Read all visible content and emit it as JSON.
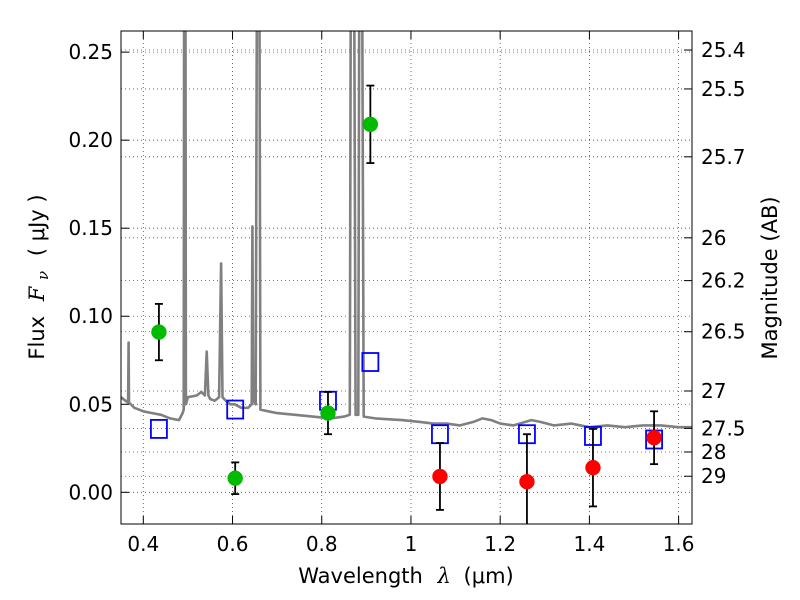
{
  "chart_data": {
    "type": "scatter",
    "xlabel_main": "Wavelength",
    "xlabel_symbol": "λ",
    "xlabel_unit": "(μm)",
    "ylabel_main": "Flux",
    "ylabel_symbol": "F",
    "ylabel_subscript": "ν",
    "ylabel_unit": "( μJy )",
    "y2label": "Magnitude (AB)",
    "xlim": [
      0.35,
      1.63
    ],
    "ylim": [
      -0.018,
      0.262
    ],
    "grid": true,
    "x_ticks": [
      {
        "value": 0.4,
        "label": "0.4"
      },
      {
        "value": 0.6,
        "label": "0.6"
      },
      {
        "value": 0.8,
        "label": "0.8"
      },
      {
        "value": 1.0,
        "label": "1"
      },
      {
        "value": 1.2,
        "label": "1.2"
      },
      {
        "value": 1.4,
        "label": "1.4"
      },
      {
        "value": 1.6,
        "label": "1.6"
      }
    ],
    "y_ticks": [
      {
        "value": 0.0,
        "label": "0.00"
      },
      {
        "value": 0.05,
        "label": "0.05"
      },
      {
        "value": 0.1,
        "label": "0.10"
      },
      {
        "value": 0.15,
        "label": "0.15"
      },
      {
        "value": 0.2,
        "label": "0.20"
      },
      {
        "value": 0.25,
        "label": "0.25"
      }
    ],
    "y2_ticks": [
      {
        "mag": 25.4,
        "label": "25.4"
      },
      {
        "mag": 25.5,
        "label": "25.5"
      },
      {
        "mag": 25.7,
        "label": "25.7"
      },
      {
        "mag": 26,
        "label": "26"
      },
      {
        "mag": 26.2,
        "label": "26.2"
      },
      {
        "mag": 26.5,
        "label": "26.5"
      },
      {
        "mag": 27,
        "label": "27"
      },
      {
        "mag": 27.5,
        "label": "27.5"
      },
      {
        "mag": 28,
        "label": "28"
      },
      {
        "mag": 29,
        "label": "29"
      }
    ],
    "series": [
      {
        "marker": "circle",
        "color": "#00bb00",
        "points": [
          {
            "x": 0.435,
            "y": 0.091,
            "err": 0.016
          },
          {
            "x": 0.606,
            "y": 0.008,
            "err": 0.009
          },
          {
            "x": 0.814,
            "y": 0.045,
            "err": 0.012
          },
          {
            "x": 0.909,
            "y": 0.209,
            "err": 0.022
          }
        ]
      },
      {
        "marker": "circle",
        "color": "#ff0000",
        "points": [
          {
            "x": 1.065,
            "y": 0.009,
            "err": 0.019
          },
          {
            "x": 1.26,
            "y": 0.006,
            "err": 0.027
          },
          {
            "x": 1.408,
            "y": 0.014,
            "err": 0.022
          },
          {
            "x": 1.545,
            "y": 0.031,
            "err": 0.015
          }
        ]
      },
      {
        "marker": "square-open",
        "color": "#0000ff",
        "points": [
          {
            "x": 0.435,
            "y": 0.036
          },
          {
            "x": 0.606,
            "y": 0.047
          },
          {
            "x": 0.814,
            "y": 0.052
          },
          {
            "x": 0.909,
            "y": 0.074
          },
          {
            "x": 1.065,
            "y": 0.033
          },
          {
            "x": 1.26,
            "y": 0.033
          },
          {
            "x": 1.408,
            "y": 0.032
          },
          {
            "x": 1.545,
            "y": 0.03
          }
        ]
      },
      {
        "marker": "line",
        "color": "#808080",
        "points": [
          [
            0.35,
            0.054
          ],
          [
            0.36,
            0.052
          ],
          [
            0.366,
            0.051
          ],
          [
            0.367,
            0.085
          ],
          [
            0.368,
            0.051
          ],
          [
            0.38,
            0.048
          ],
          [
            0.4,
            0.046
          ],
          [
            0.42,
            0.045
          ],
          [
            0.44,
            0.044
          ],
          [
            0.46,
            0.042
          ],
          [
            0.48,
            0.041
          ],
          [
            0.484,
            0.043
          ],
          [
            0.488,
            0.045
          ],
          [
            0.4905,
            0.047
          ],
          [
            0.4915,
            0.27
          ],
          [
            0.4945,
            0.27
          ],
          [
            0.4955,
            0.05
          ],
          [
            0.5,
            0.054
          ],
          [
            0.52,
            0.055
          ],
          [
            0.53,
            0.057
          ],
          [
            0.538,
            0.055
          ],
          [
            0.542,
            0.08
          ],
          [
            0.546,
            0.055
          ],
          [
            0.55,
            0.053
          ],
          [
            0.56,
            0.052
          ],
          [
            0.57,
            0.054
          ],
          [
            0.5745,
            0.13
          ],
          [
            0.5775,
            0.054
          ],
          [
            0.585,
            0.052
          ],
          [
            0.595,
            0.05
          ],
          [
            0.605,
            0.05
          ],
          [
            0.62,
            0.048
          ],
          [
            0.635,
            0.048
          ],
          [
            0.643,
            0.05
          ],
          [
            0.6445,
            0.151
          ],
          [
            0.6465,
            0.052
          ],
          [
            0.652,
            0.05
          ],
          [
            0.6545,
            0.27
          ],
          [
            0.6605,
            0.27
          ],
          [
            0.6625,
            0.047
          ],
          [
            0.68,
            0.046
          ],
          [
            0.7,
            0.045
          ],
          [
            0.74,
            0.044
          ],
          [
            0.78,
            0.043
          ],
          [
            0.82,
            0.042
          ],
          [
            0.85,
            0.043
          ],
          [
            0.863,
            0.044
          ],
          [
            0.865,
            0.27
          ],
          [
            0.873,
            0.27
          ],
          [
            0.876,
            0.044
          ],
          [
            0.882,
            0.044
          ],
          [
            0.884,
            0.27
          ],
          [
            0.891,
            0.27
          ],
          [
            0.894,
            0.043
          ],
          [
            0.92,
            0.042
          ],
          [
            0.98,
            0.041
          ],
          [
            1.02,
            0.04
          ],
          [
            1.05,
            0.039
          ],
          [
            1.08,
            0.039
          ],
          [
            1.11,
            0.038
          ],
          [
            1.14,
            0.04
          ],
          [
            1.16,
            0.042
          ],
          [
            1.18,
            0.041
          ],
          [
            1.2,
            0.039
          ],
          [
            1.23,
            0.038
          ],
          [
            1.27,
            0.041
          ],
          [
            1.29,
            0.04
          ],
          [
            1.32,
            0.038
          ],
          [
            1.36,
            0.039
          ],
          [
            1.4,
            0.037
          ],
          [
            1.44,
            0.038
          ],
          [
            1.48,
            0.037
          ],
          [
            1.52,
            0.038
          ],
          [
            1.56,
            0.038
          ],
          [
            1.6,
            0.037
          ],
          [
            1.63,
            0.037
          ]
        ]
      }
    ]
  }
}
